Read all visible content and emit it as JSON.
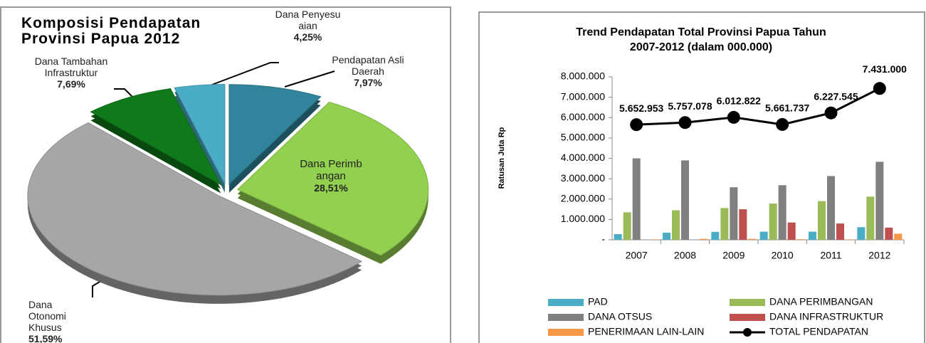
{
  "chart_data": [
    {
      "type": "pie",
      "title": "Komposisi Pendapatan Provinsi Papua 2012",
      "categories": [
        "Pendapatan Asli Daerah",
        "Dana Perimbangan",
        "Dana Otonomi Khusus",
        "Dana Tambahan Infrastruktur",
        "Dana Penyesuaian"
      ],
      "values": [
        7.97,
        28.51,
        51.59,
        7.69,
        4.25
      ],
      "value_labels": [
        "7,97%",
        "28,51%",
        "51,59%",
        "7,69%",
        "4,25%"
      ],
      "colors": [
        "#31849b",
        "#92d050",
        "#a6a6a6",
        "#0f7a1a",
        "#4bacc6"
      ]
    },
    {
      "type": "bar",
      "title": "Trend Pendapatan Total Provinsi Papua Tahun 2007-2012 (dalam 000.000)",
      "y_label": "Ratusan Juta Rp",
      "categories": [
        "2007",
        "2008",
        "2009",
        "2010",
        "2011",
        "2012"
      ],
      "ylim": [
        0,
        8000000
      ],
      "yticks": [
        {
          "value": 0,
          "label": "-"
        },
        {
          "value": 1000000,
          "label": "1.000.000"
        },
        {
          "value": 2000000,
          "label": "2.000.000"
        },
        {
          "value": 3000000,
          "label": "3.000.000"
        },
        {
          "value": 4000000,
          "label": "4.000.000"
        },
        {
          "value": 5000000,
          "label": "5.000.000"
        },
        {
          "value": 6000000,
          "label": "6.000.000"
        },
        {
          "value": 7000000,
          "label": "7.000.000"
        },
        {
          "value": 8000000,
          "label": "8.000.000"
        }
      ],
      "legend": "bottom",
      "series": [
        {
          "name": "PAD",
          "color": "#4bacc6",
          "values": [
            280000,
            350000,
            390000,
            400000,
            400000,
            620000
          ]
        },
        {
          "name": "DANA PERIMBANGAN",
          "color": "#9bbb59",
          "values": [
            1350000,
            1450000,
            1560000,
            1780000,
            1900000,
            2120000
          ]
        },
        {
          "name": "DANA OTSUS",
          "color": "#808080",
          "values": [
            4000000,
            3900000,
            2580000,
            2680000,
            3130000,
            3830000
          ]
        },
        {
          "name": "DANA INFRASTRUKTUR",
          "color": "#c0504d",
          "values": [
            0,
            0,
            1500000,
            850000,
            800000,
            600000
          ]
        },
        {
          "name": "PENERIMAAN LAIN-LAIN",
          "color": "#f79646",
          "values": [
            20000,
            50000,
            50000,
            30000,
            20000,
            300000
          ]
        },
        {
          "name": "TOTAL PENDAPATAN",
          "type": "line",
          "color": "#000000",
          "values": [
            5652953,
            5757078,
            6012822,
            5661737,
            6227545,
            7431000
          ],
          "value_labels": [
            "5.652.953",
            "5.757.078",
            "6.012.822",
            "5.661.737",
            "6.227.545",
            "7.431.000"
          ]
        }
      ]
    }
  ]
}
